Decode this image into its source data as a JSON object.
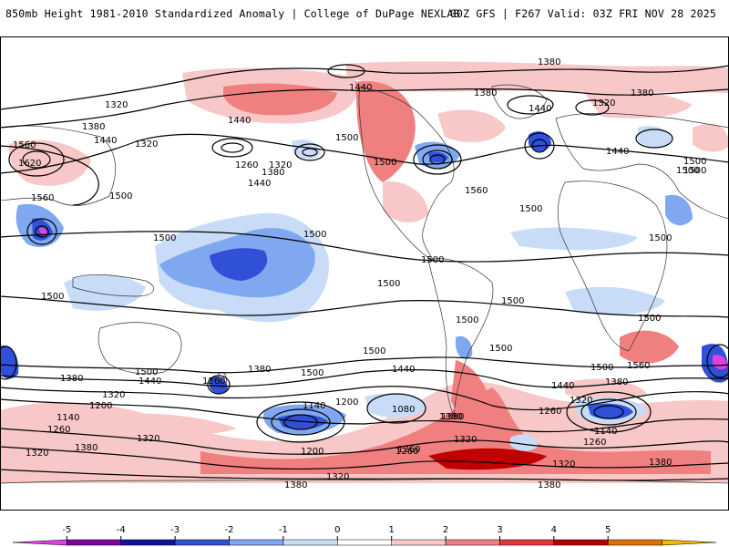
{
  "header": {
    "title_left": "850mb Height 1981-2010 Standardized Anomaly | College of DuPage NEXLAB",
    "title_right": "00Z GFS | F267 Valid: 03Z FRI NOV 28 2025"
  },
  "colorbar": {
    "ticks": [
      "-5",
      "-4",
      "-3",
      "-2",
      "-1",
      "0",
      "1",
      "2",
      "3",
      "4",
      "5"
    ],
    "colors": [
      "#e040e0",
      "#8000a0",
      "#1010a0",
      "#3050d8",
      "#80a8f0",
      "#c8dcf8",
      "#ffffff",
      "#f8c8c8",
      "#f08080",
      "#e03838",
      "#b00000",
      "#e07000",
      "#f8b800"
    ]
  },
  "contour_labels": [
    "1380",
    "1440",
    "1380",
    "1320",
    "1440",
    "1320",
    "1380",
    "1440",
    "1380",
    "1500",
    "1440",
    "1500",
    "1320",
    "1500",
    "1560",
    "1620",
    "1560",
    "1500",
    "1500",
    "1500",
    "1500",
    "1440",
    "1260",
    "1320",
    "1380",
    "1440",
    "1500",
    "1500",
    "1500",
    "1500",
    "1500",
    "1500",
    "1500",
    "1500",
    "1560",
    "1560",
    "1500",
    "1440",
    "1380",
    "1320",
    "1200",
    "1140",
    "1260",
    "1320",
    "1380",
    "1260",
    "1380",
    "1320",
    "1140",
    "1200",
    "1080",
    "1380",
    "1320",
    "1260",
    "1500",
    "1380",
    "1440",
    "1320",
    "1260",
    "1140",
    "1260",
    "1380",
    "1320",
    "1200",
    "1260",
    "1320",
    "1380",
    "1380",
    "1500",
    "1500",
    "1440",
    "1380",
    "1500",
    "1500"
  ]
}
